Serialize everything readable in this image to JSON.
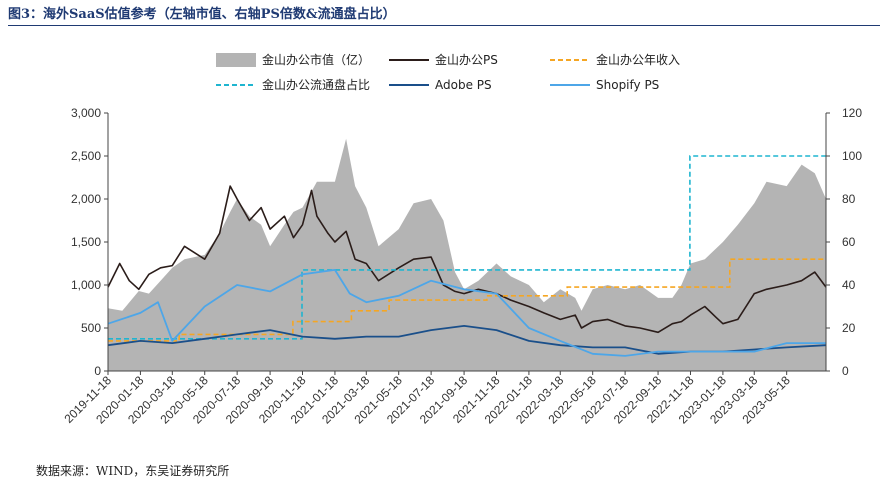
{
  "figure": {
    "title": "图3：海外SaaS估值参考（左轴市值、右轴PS倍数&流通盘占比）",
    "source": "数据来源：WIND，东吴证券研究所"
  },
  "chart_data": {
    "type": "line",
    "categories": [
      "2019-11-18",
      "2020-01-18",
      "2020-03-18",
      "2020-05-18",
      "2020-07-18",
      "2020-09-18",
      "2020-11-18",
      "2021-01-18",
      "2021-03-18",
      "2021-05-18",
      "2021-07-18",
      "2021-09-18",
      "2021-11-18",
      "2022-01-18",
      "2022-03-18",
      "2022-05-18",
      "2022-07-18",
      "2022-09-18",
      "2022-11-18",
      "2023-01-18",
      "2023-03-18",
      "2023-05-18"
    ],
    "x_range": [
      "2019-11-18",
      "2023-07-31"
    ],
    "ylim_left": [
      0,
      3000
    ],
    "yticks_left": [
      "0",
      "500",
      "1,000",
      "1,500",
      "2,000",
      "2,500",
      "3,000"
    ],
    "ylim_right": [
      0,
      120
    ],
    "yticks_right": [
      "0",
      "20",
      "40",
      "60",
      "80",
      "100",
      "120"
    ],
    "grid": false,
    "legend_position": "top",
    "series": [
      {
        "name": "金山办公市值（亿）",
        "axis": "left",
        "style": "area",
        "color": "#b4b4b4",
        "x": [
          "2019-11-18",
          "2019-12-15",
          "2020-01-15",
          "2020-02-03",
          "2020-02-25",
          "2020-03-18",
          "2020-04-10",
          "2020-05-18",
          "2020-06-15",
          "2020-07-05",
          "2020-07-18",
          "2020-08-10",
          "2020-09-01",
          "2020-09-18",
          "2020-10-15",
          "2020-11-01",
          "2020-11-18",
          "2020-12-15",
          "2021-01-18",
          "2021-02-08",
          "2021-02-25",
          "2021-03-18",
          "2021-04-10",
          "2021-05-18",
          "2021-06-15",
          "2021-07-18",
          "2021-08-10",
          "2021-09-01",
          "2021-09-18",
          "2021-10-15",
          "2021-11-18",
          "2021-12-15",
          "2022-01-18",
          "2022-02-15",
          "2022-03-18",
          "2022-04-15",
          "2022-04-27",
          "2022-05-18",
          "2022-06-15",
          "2022-07-18",
          "2022-08-15",
          "2022-09-18",
          "2022-10-15",
          "2022-11-01",
          "2022-11-18",
          "2022-12-15",
          "2023-01-18",
          "2023-02-15",
          "2023-03-18",
          "2023-04-10",
          "2023-05-18",
          "2023-06-15",
          "2023-07-10",
          "2023-07-31"
        ],
        "values": [
          730,
          700,
          930,
          900,
          1050,
          1200,
          1300,
          1350,
          1600,
          1850,
          2000,
          1800,
          1700,
          1450,
          1700,
          1850,
          1900,
          2200,
          2200,
          2700,
          2150,
          1900,
          1450,
          1650,
          1950,
          2000,
          1750,
          1150,
          950,
          1050,
          1250,
          1100,
          1000,
          800,
          950,
          850,
          700,
          950,
          1000,
          950,
          1000,
          850,
          850,
          1000,
          1250,
          1300,
          1500,
          1700,
          1950,
          2200,
          2150,
          2400,
          2300,
          2000
        ]
      },
      {
        "name": "金山办公PS",
        "axis": "right",
        "style": "line",
        "color": "#2b1d1a",
        "x": [
          "2019-11-18",
          "2019-12-10",
          "2019-12-28",
          "2020-01-15",
          "2020-02-03",
          "2020-02-25",
          "2020-03-18",
          "2020-04-10",
          "2020-05-18",
          "2020-06-15",
          "2020-07-05",
          "2020-07-18",
          "2020-08-10",
          "2020-09-01",
          "2020-09-18",
          "2020-10-15",
          "2020-11-01",
          "2020-11-18",
          "2020-12-05",
          "2020-12-15",
          "2021-01-05",
          "2021-01-18",
          "2021-02-08",
          "2021-02-25",
          "2021-03-18",
          "2021-04-10",
          "2021-05-18",
          "2021-06-15",
          "2021-07-18",
          "2021-08-10",
          "2021-09-01",
          "2021-09-18",
          "2021-10-15",
          "2021-11-18",
          "2021-12-15",
          "2022-01-18",
          "2022-02-15",
          "2022-03-18",
          "2022-04-15",
          "2022-04-27",
          "2022-05-18",
          "2022-06-15",
          "2022-07-18",
          "2022-08-15",
          "2022-09-18",
          "2022-10-15",
          "2022-11-01",
          "2022-11-18",
          "2022-12-15",
          "2023-01-05",
          "2023-01-18",
          "2023-02-15",
          "2023-03-18",
          "2023-04-10",
          "2023-05-18",
          "2023-06-15",
          "2023-07-10",
          "2023-07-31"
        ],
        "values": [
          39,
          50,
          42,
          38,
          45,
          48,
          49,
          58,
          52,
          64,
          86,
          80,
          70,
          76,
          66,
          72,
          62,
          68,
          84,
          72,
          64,
          60,
          65,
          52,
          50,
          42,
          48,
          52,
          53,
          40,
          37,
          36,
          38,
          36,
          33,
          30,
          27,
          24,
          26,
          20,
          23,
          24,
          21,
          20,
          18,
          22,
          23,
          26,
          30,
          25,
          22,
          24,
          36,
          38,
          40,
          42,
          46,
          39
        ]
      },
      {
        "name": "金山办公年收入",
        "axis": "right",
        "style": "step-dashed",
        "color": "#f5a623",
        "x": [
          "2019-11-18",
          "2020-03-31",
          "2020-10-31",
          "2021-02-18",
          "2021-04-30",
          "2021-10-31",
          "2022-03-31",
          "2022-10-31",
          "2023-01-31",
          "2023-07-31"
        ],
        "values": [
          14,
          17,
          23,
          28,
          33,
          35,
          39,
          39,
          52,
          52
        ]
      },
      {
        "name": "金山办公流通盘占比",
        "axis": "right",
        "style": "step-dashed",
        "color": "#1fb5d0",
        "x": [
          "2019-11-18",
          "2020-11-17",
          "2022-11-17",
          "2023-07-31"
        ],
        "values": [
          15,
          47,
          100,
          100
        ]
      },
      {
        "name": "Adobe PS",
        "axis": "right",
        "style": "line",
        "color": "#1a4f8a",
        "x": [
          "2019-11-18",
          "2020-01-18",
          "2020-03-18",
          "2020-05-18",
          "2020-07-18",
          "2020-09-18",
          "2020-11-18",
          "2021-01-18",
          "2021-03-18",
          "2021-05-18",
          "2021-07-18",
          "2021-09-18",
          "2021-11-18",
          "2022-01-18",
          "2022-03-18",
          "2022-05-18",
          "2022-07-18",
          "2022-09-18",
          "2022-11-18",
          "2023-01-18",
          "2023-03-18",
          "2023-05-18",
          "2023-07-31"
        ],
        "values": [
          12,
          14,
          13,
          15,
          17,
          19,
          16,
          15,
          16,
          16,
          19,
          21,
          19,
          14,
          12,
          11,
          11,
          8,
          9,
          9,
          10,
          11,
          12
        ]
      },
      {
        "name": "Shopify PS",
        "axis": "right",
        "style": "line",
        "color": "#4da6e8",
        "x": [
          "2019-11-18",
          "2020-01-18",
          "2020-02-20",
          "2020-03-18",
          "2020-05-18",
          "2020-07-18",
          "2020-09-18",
          "2020-11-18",
          "2021-01-18",
          "2021-02-15",
          "2021-03-18",
          "2021-05-18",
          "2021-07-18",
          "2021-09-18",
          "2021-11-18",
          "2022-01-18",
          "2022-03-18",
          "2022-05-18",
          "2022-07-18",
          "2022-09-18",
          "2022-11-18",
          "2023-01-18",
          "2023-03-18",
          "2023-05-18",
          "2023-07-31"
        ],
        "values": [
          22,
          27,
          32,
          14,
          30,
          40,
          37,
          45,
          47,
          36,
          32,
          35,
          42,
          38,
          36,
          20,
          14,
          8,
          7,
          9,
          9,
          9,
          9,
          13,
          13
        ]
      }
    ]
  }
}
